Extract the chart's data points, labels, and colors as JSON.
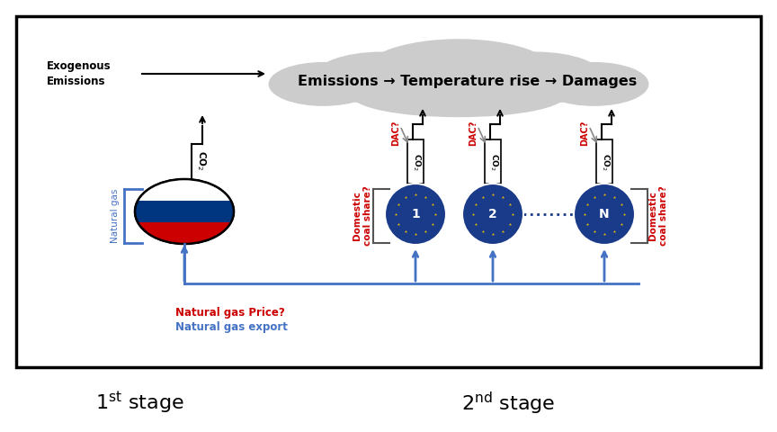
{
  "bg_color": "#ffffff",
  "border_color": "#000000",
  "cloud_color": "#cccccc",
  "cloud_text": "Emissions → Temperature rise → Damages",
  "exogenous_text": "Exogenous\nEmissions",
  "natural_gas_label": "Natural gas",
  "nat_gas_price_label": "Natural gas Price?",
  "nat_gas_export_label": "Natural gas export",
  "domestic_coal_label": "Domestic\ncoal share?",
  "dac_label": "DAC?",
  "eu_circle_color": "#1a3a8a",
  "eu_star_color": "#f0c000",
  "russia_white": "#ffffff",
  "russia_blue": "#003580",
  "russia_red": "#cc0000",
  "red_text_color": "#cc0000",
  "blue_arrow_color": "#4472c4",
  "gray_arrow_color": "#888888",
  "black": "#000000"
}
